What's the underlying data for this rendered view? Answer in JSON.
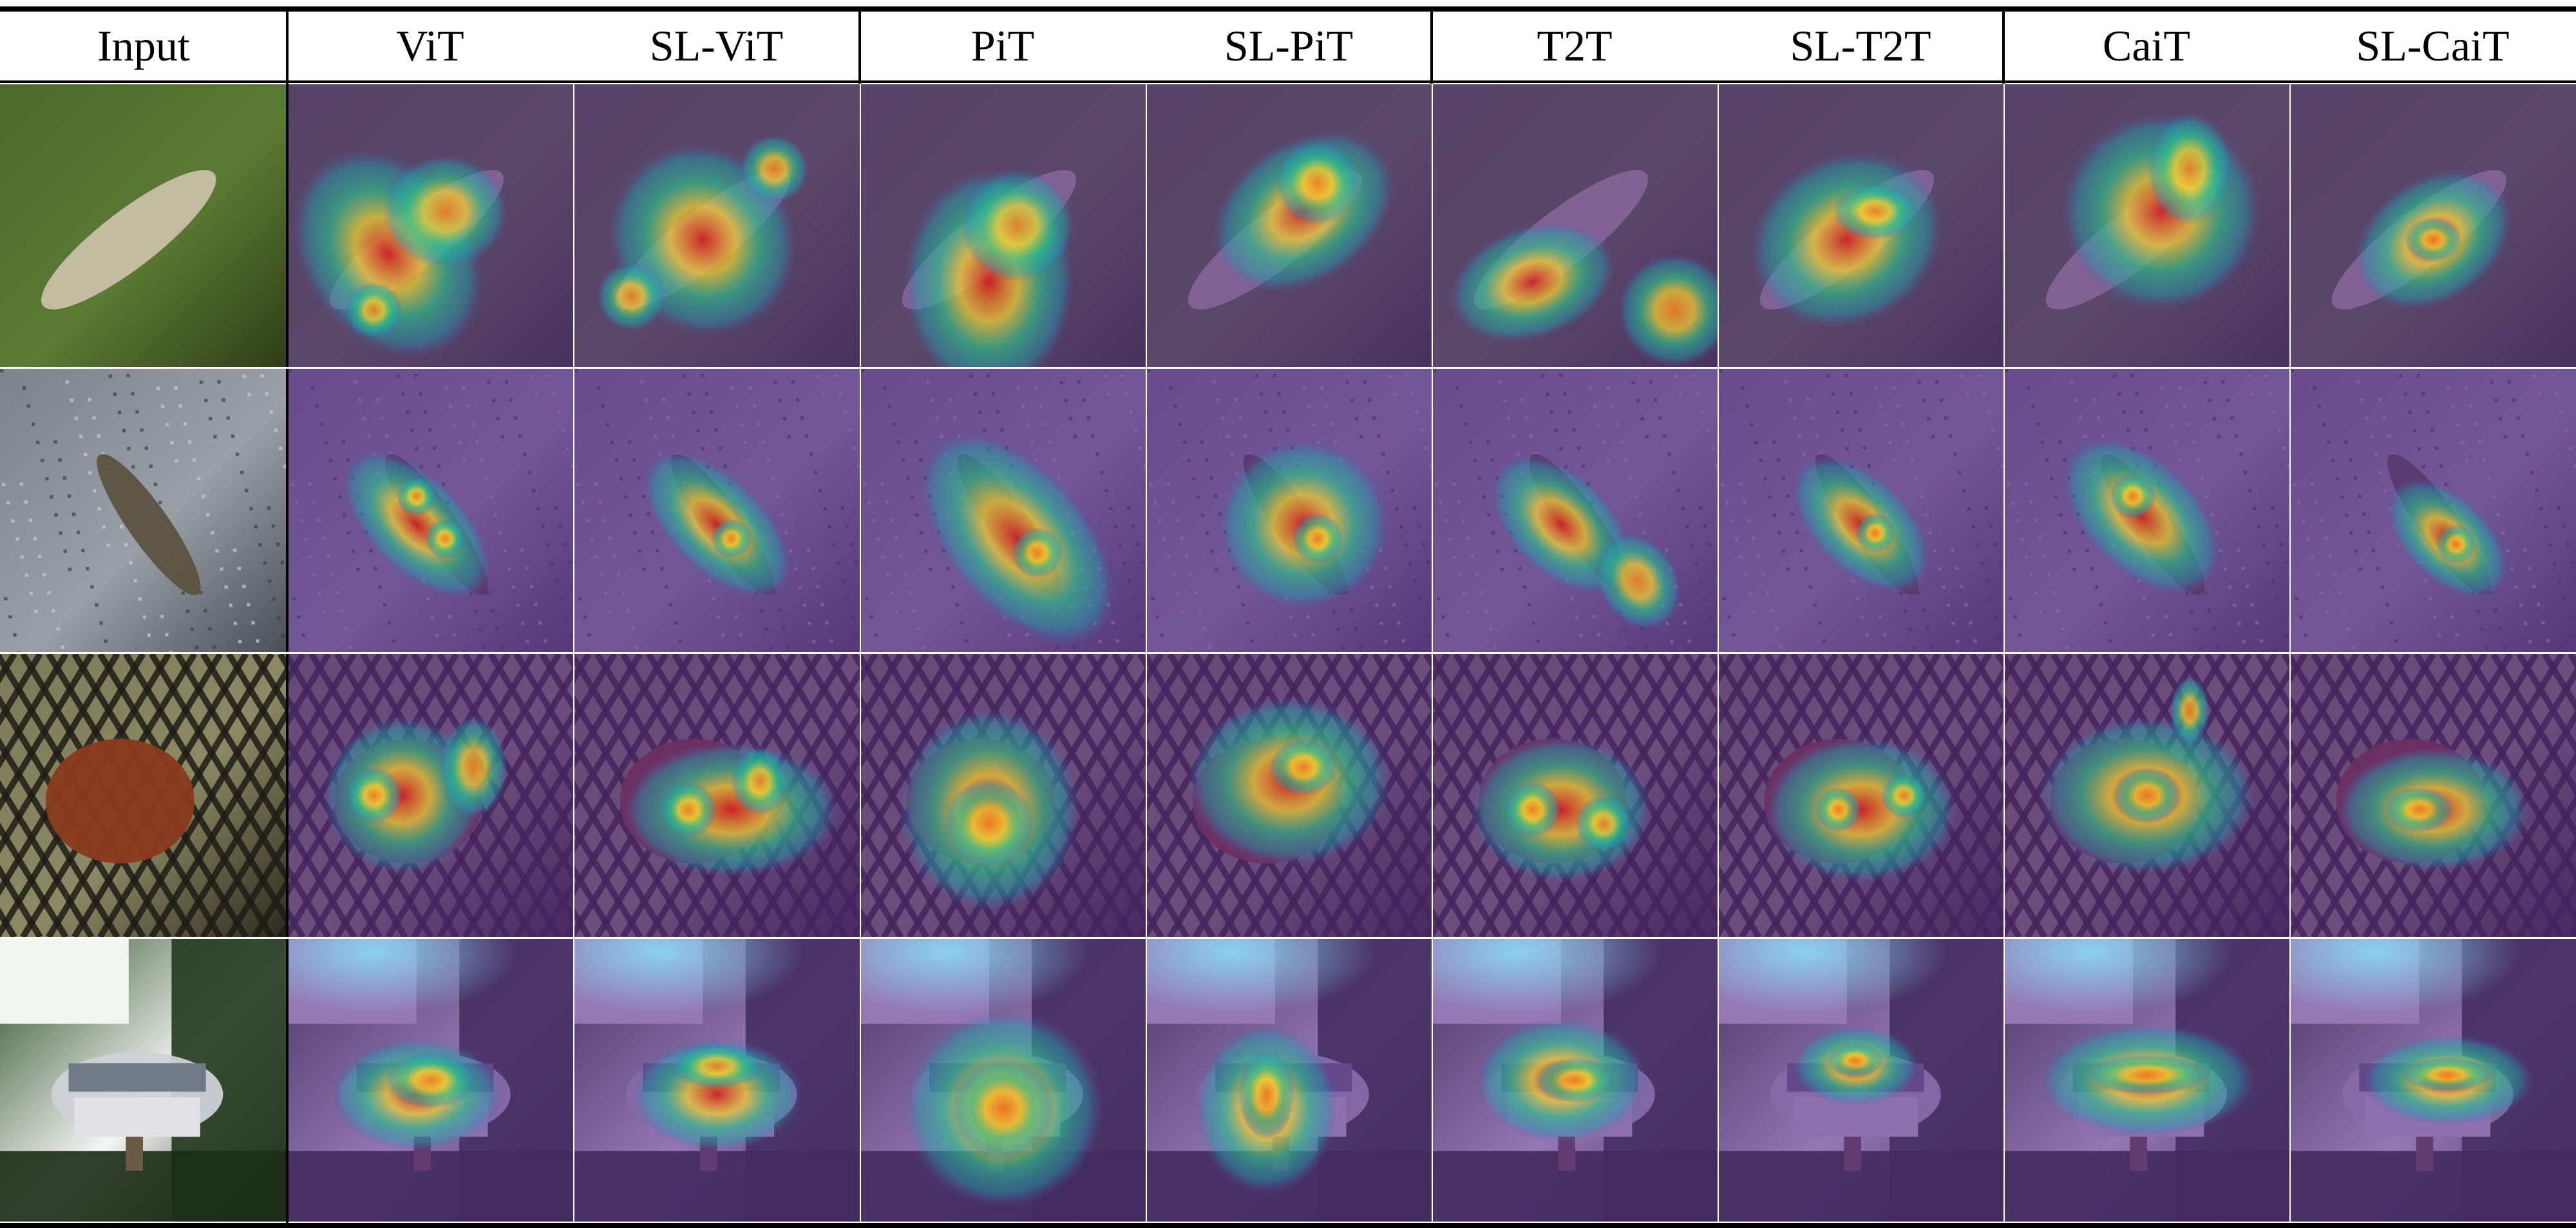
{
  "figure": {
    "columns": [
      "Input",
      "ViT",
      "SL-ViT",
      "PiT",
      "SL-PiT",
      "T2T",
      "SL-T2T",
      "CaiT",
      "SL-CaiT"
    ],
    "rows": [
      {
        "subject": "grasshopper",
        "input_colors": [
          "#4d6a2c",
          "#5b7a33",
          "#2f3d18"
        ],
        "object_color": "#c9c0a6"
      },
      {
        "subject": "insect on gravel",
        "input_colors": [
          "#7d828a",
          "#9aa0a8",
          "#4a4f57"
        ],
        "object_color": "#5b5240"
      },
      {
        "subject": "spider on mesh",
        "input_colors": [
          "#7b7a58",
          "#8c8a64",
          "#2c2a1e"
        ],
        "object_color": "#8a3a1e"
      },
      {
        "subject": "house among trees",
        "input_colors": [
          "#2b4a25",
          "#f4f6f4",
          "#1d2d19"
        ],
        "object_color": "#cfd1d6"
      }
    ],
    "colormap": [
      "#3b0f70",
      "#5b2a8a",
      "#4a5fb4",
      "#21a0b0",
      "#2ec28a",
      "#9ad149",
      "#f0d034",
      "#f07b22",
      "#d21f1f"
    ]
  }
}
